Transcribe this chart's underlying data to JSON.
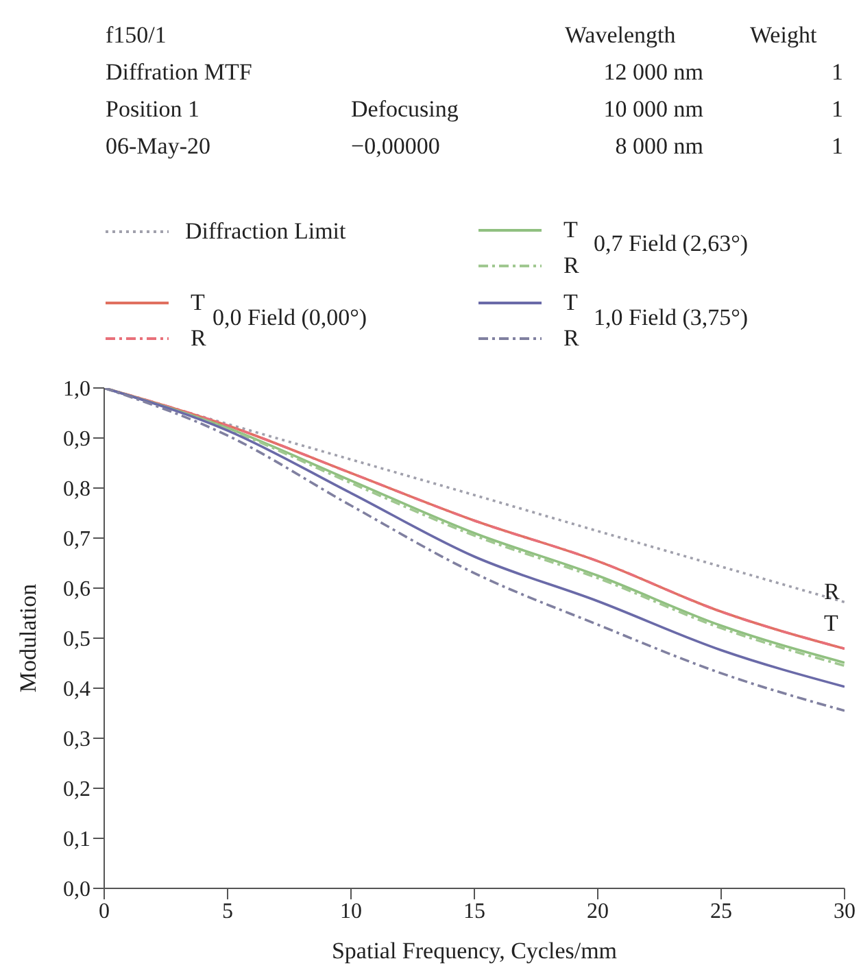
{
  "chart_data": {
    "type": "line",
    "xlabel": "Spatial Frequency, Cycles/mm",
    "ylabel": "Modulation",
    "x": [
      0,
      5,
      10,
      15,
      20,
      25,
      30
    ],
    "series": [
      {
        "name": "Diffraction Limit",
        "color": "#a0a0ac",
        "line_style": "dotted",
        "values": [
          1,
          0.928,
          0.857,
          0.786,
          0.714,
          0.643,
          0.572
        ]
      },
      {
        "name": "T",
        "color": "#e07060",
        "line_style": "solid",
        "values": [
          1,
          0.925,
          0.83,
          0.735,
          0.654,
          0.553,
          0.479
        ]
      },
      {
        "name": "R",
        "color": "#e8707a",
        "line_style": "dashed",
        "values": [
          1,
          0.925,
          0.83,
          0.735,
          0.654,
          0.553,
          0.479
        ]
      },
      {
        "name": "T",
        "color": "#90c080",
        "line_style": "solid",
        "values": [
          1,
          0.92,
          0.815,
          0.71,
          0.625,
          0.525,
          0.451
        ]
      },
      {
        "name": "R",
        "color": "#a0c890",
        "line_style": "dashed",
        "values": [
          1,
          0.918,
          0.81,
          0.705,
          0.62,
          0.52,
          0.445
        ]
      },
      {
        "name": "T",
        "color": "#6a6aa8",
        "line_style": "solid",
        "values": [
          1,
          0.915,
          0.79,
          0.663,
          0.574,
          0.476,
          0.403
        ]
      },
      {
        "name": "R",
        "color": "#8080a0",
        "line_style": "dashed",
        "values": [
          1,
          0.905,
          0.765,
          0.63,
          0.527,
          0.43,
          0.355
        ]
      }
    ],
    "xlim": [
      0,
      30
    ],
    "xticks": [
      0,
      5,
      10,
      15,
      20,
      25,
      30
    ],
    "ylim": [
      0,
      1
    ],
    "yticks": [
      {
        "value": 0,
        "label": "0,0"
      },
      {
        "value": 0.1,
        "label": "0,1"
      },
      {
        "value": 0.2,
        "label": "0,2"
      },
      {
        "value": 0.3,
        "label": "0,3"
      },
      {
        "value": 0.4,
        "label": "0,4"
      },
      {
        "value": 0.5,
        "label": "0,5"
      },
      {
        "value": 0.6,
        "label": "0,6"
      },
      {
        "value": 0.7,
        "label": "0,7"
      },
      {
        "value": 0.8,
        "label": "0,8"
      },
      {
        "value": 0.9,
        "label": "0,9"
      },
      {
        "value": 1,
        "label": "1,0"
      }
    ],
    "grid": false,
    "legend": "top",
    "marker": "none",
    "annotations": [
      "f150/1",
      "Diffration MTF",
      "Position 1",
      "06-May-20",
      "Defocusing",
      "−0,00000",
      "Wavelength",
      "12 000 nm",
      "10 000 nm",
      "8 000 nm",
      "Weight",
      "1",
      "1",
      "1",
      "0,0 Field (0,00°)",
      "0,7 Field (2,63°)",
      "1,0 Field (3,75°)",
      "R",
      "T"
    ]
  }
}
